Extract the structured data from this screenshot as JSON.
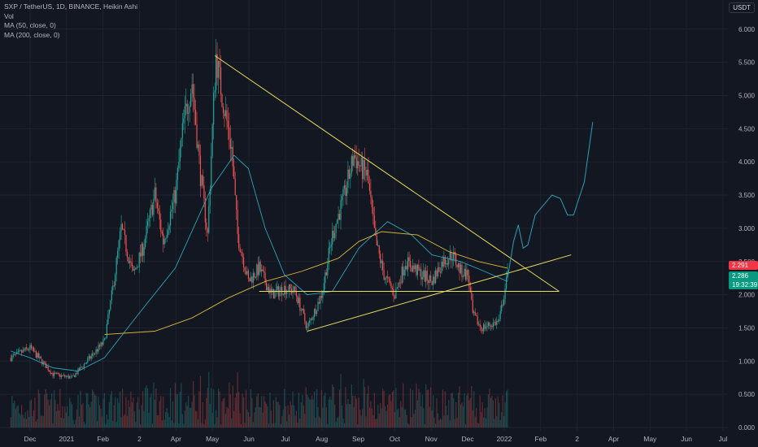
{
  "header": {
    "title": "SXP / TetherUS, 1D, BINANCE, Heikin Ashi",
    "indicators": [
      "Vol",
      "MA (50, close, 0)",
      "MA (200, close, 0)"
    ],
    "currency": "USDT"
  },
  "price_tags": {
    "red_price": "2.291",
    "green_price": "2.286",
    "green_countdown": "19:32:39"
  },
  "colors": {
    "background": "#131722",
    "bull": "#26a69a",
    "bear": "#ef5350",
    "ma50": "#2aa4b5",
    "ma200": "#d8b93a",
    "trendline": "#e6db5a",
    "projection": "#2a9fb3",
    "grid": "#1f2330"
  },
  "chart_data": {
    "type": "candlestick",
    "symbol": "SXP / TetherUS",
    "interval": "1D",
    "exchange": "BINANCE",
    "price_axis": {
      "ticks": [
        "6.000",
        "5.500",
        "5.000",
        "4.500",
        "4.000",
        "3.500",
        "3.000",
        "2.500",
        "2.000",
        "1.500",
        "1.000",
        "0.500",
        "0.000"
      ],
      "range": [
        0.0,
        6.2
      ]
    },
    "time_axis": {
      "labels": [
        "Dec",
        "2021",
        "Feb",
        "2",
        "Apr",
        "May",
        "Jun",
        "Jul",
        "Aug",
        "Sep",
        "Oct",
        "Nov",
        "Dec",
        "2022",
        "Feb",
        "2",
        "Apr",
        "May",
        "Jun",
        "Jul"
      ]
    },
    "price_path": [
      [
        "2020-11-15",
        1.05
      ],
      [
        "2020-12-01",
        1.2
      ],
      [
        "2020-12-20",
        0.8
      ],
      [
        "2021-01-05",
        0.75
      ],
      [
        "2021-01-20",
        1.05
      ],
      [
        "2021-02-01",
        1.3
      ],
      [
        "2021-02-08",
        2.1
      ],
      [
        "2021-02-15",
        3.0
      ],
      [
        "2021-02-25",
        2.3
      ],
      [
        "2021-03-05",
        2.7
      ],
      [
        "2021-03-15",
        3.5
      ],
      [
        "2021-03-22",
        2.8
      ],
      [
        "2021-04-01",
        3.5
      ],
      [
        "2021-04-08",
        4.6
      ],
      [
        "2021-04-15",
        5.2
      ],
      [
        "2021-04-22",
        3.8
      ],
      [
        "2021-04-28",
        2.9
      ],
      [
        "2021-05-03",
        4.9
      ],
      [
        "2021-05-05",
        5.6
      ],
      [
        "2021-05-10",
        5.0
      ],
      [
        "2021-05-18",
        4.2
      ],
      [
        "2021-05-23",
        2.9
      ],
      [
        "2021-06-01",
        2.2
      ],
      [
        "2021-06-10",
        2.4
      ],
      [
        "2021-06-20",
        2.0
      ],
      [
        "2021-07-01",
        2.1
      ],
      [
        "2021-07-10",
        2.05
      ],
      [
        "2021-07-20",
        1.5
      ],
      [
        "2021-08-01",
        2.0
      ],
      [
        "2021-08-10",
        2.9
      ],
      [
        "2021-08-20",
        3.5
      ],
      [
        "2021-08-28",
        4.1
      ],
      [
        "2021-09-03",
        3.9
      ],
      [
        "2021-09-08",
        3.8
      ],
      [
        "2021-09-15",
        2.8
      ],
      [
        "2021-09-22",
        2.3
      ],
      [
        "2021-10-01",
        2.0
      ],
      [
        "2021-10-10",
        2.5
      ],
      [
        "2021-10-20",
        2.35
      ],
      [
        "2021-11-01",
        2.2
      ],
      [
        "2021-11-10",
        2.5
      ],
      [
        "2021-11-18",
        2.6
      ],
      [
        "2021-11-25",
        2.35
      ],
      [
        "2021-12-01",
        2.3
      ],
      [
        "2021-12-05",
        1.7
      ],
      [
        "2021-12-12",
        1.5
      ],
      [
        "2021-12-20",
        1.55
      ],
      [
        "2021-12-27",
        1.6
      ],
      [
        "2021-12-31",
        2.0
      ],
      [
        "2022-01-03",
        2.29
      ]
    ],
    "moving_averages": [
      {
        "name": "MA (50, close, 0)",
        "color": "#2aa4b5",
        "points": [
          [
            "2020-11-15",
            1.15
          ],
          [
            "2020-12-01",
            1.05
          ],
          [
            "2020-12-20",
            0.9
          ],
          [
            "2021-01-10",
            0.85
          ],
          [
            "2021-02-01",
            1.05
          ],
          [
            "2021-03-01",
            1.7
          ],
          [
            "2021-04-01",
            2.4
          ],
          [
            "2021-05-01",
            3.6
          ],
          [
            "2021-05-20",
            4.1
          ],
          [
            "2021-06-01",
            3.9
          ],
          [
            "2021-06-15",
            3.0
          ],
          [
            "2021-07-01",
            2.3
          ],
          [
            "2021-07-20",
            2.0
          ],
          [
            "2021-08-10",
            2.05
          ],
          [
            "2021-09-01",
            2.7
          ],
          [
            "2021-09-25",
            3.1
          ],
          [
            "2021-10-15",
            2.9
          ],
          [
            "2021-11-01",
            2.6
          ],
          [
            "2021-11-25",
            2.5
          ],
          [
            "2021-12-15",
            2.35
          ],
          [
            "2022-01-03",
            2.2
          ]
        ]
      },
      {
        "name": "MA (200, close, 0)",
        "color": "#d8b93a",
        "points": [
          [
            "2021-02-01",
            1.4
          ],
          [
            "2021-03-15",
            1.45
          ],
          [
            "2021-04-15",
            1.65
          ],
          [
            "2021-05-15",
            1.95
          ],
          [
            "2021-06-15",
            2.2
          ],
          [
            "2021-07-15",
            2.35
          ],
          [
            "2021-08-15",
            2.55
          ],
          [
            "2021-09-01",
            2.8
          ],
          [
            "2021-09-20",
            2.95
          ],
          [
            "2021-10-20",
            2.9
          ],
          [
            "2021-11-15",
            2.65
          ],
          [
            "2021-12-10",
            2.5
          ],
          [
            "2022-01-03",
            2.4
          ]
        ]
      }
    ],
    "trendlines": [
      {
        "name": "descending-resistance",
        "from": [
          "2021-05-04",
          5.6
        ],
        "to": [
          "2022-02-15",
          2.05
        ]
      },
      {
        "name": "ascending-support",
        "from": [
          "2021-07-20",
          1.45
        ],
        "to": [
          "2022-02-25",
          2.6
        ]
      },
      {
        "name": "horizontal-support",
        "from": [
          "2021-06-10",
          2.05
        ],
        "to": [
          "2022-02-15",
          2.05
        ]
      }
    ],
    "projection": [
      [
        "2022-01-03",
        2.25
      ],
      [
        "2022-01-08",
        2.8
      ],
      [
        "2022-01-12",
        3.05
      ],
      [
        "2022-01-16",
        2.7
      ],
      [
        "2022-01-20",
        2.75
      ],
      [
        "2022-01-26",
        3.2
      ],
      [
        "2022-02-02",
        3.35
      ],
      [
        "2022-02-09",
        3.5
      ],
      [
        "2022-02-16",
        3.45
      ],
      [
        "2022-02-22",
        3.2
      ],
      [
        "2022-02-27",
        3.2
      ],
      [
        "2022-03-08",
        3.7
      ],
      [
        "2022-03-15",
        4.6
      ]
    ],
    "volume_axis": {
      "ticks": [
        "1.000",
        "0.500",
        "0.000"
      ]
    }
  }
}
